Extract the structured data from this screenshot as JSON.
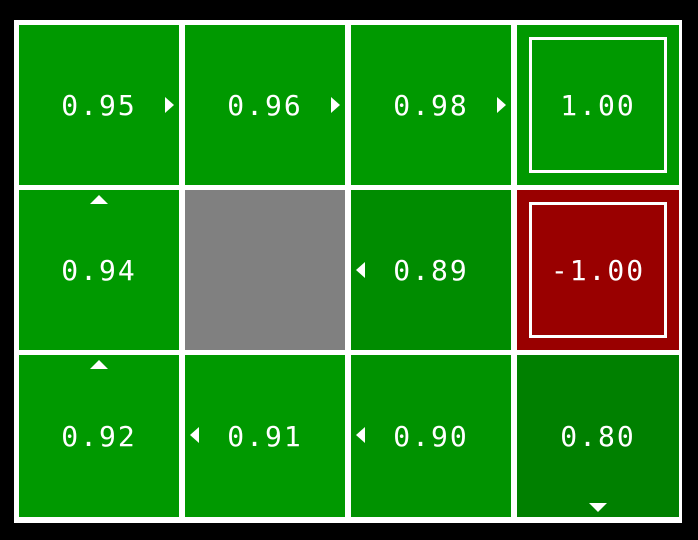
{
  "grid": {
    "rows": [
      [
        {
          "value": "0.95",
          "color": "#009900",
          "arrow": "right"
        },
        {
          "value": "0.96",
          "color": "#009900",
          "arrow": "right"
        },
        {
          "value": "0.98",
          "color": "#009900",
          "arrow": "right"
        },
        {
          "value": "1.00",
          "color": "#009900",
          "terminal": true
        }
      ],
      [
        {
          "value": "0.94",
          "color": "#009900",
          "arrow": "up"
        },
        {
          "value": "",
          "color": "#808080",
          "wall": true
        },
        {
          "value": "0.89",
          "color": "#008c00",
          "arrow": "left"
        },
        {
          "value": "-1.00",
          "color": "#990000",
          "terminal": true
        }
      ],
      [
        {
          "value": "0.92",
          "color": "#009900",
          "arrow": "up"
        },
        {
          "value": "0.91",
          "color": "#009900",
          "arrow": "left"
        },
        {
          "value": "0.90",
          "color": "#009200",
          "arrow": "left"
        },
        {
          "value": "0.80",
          "color": "#008000",
          "arrow": "down"
        }
      ]
    ]
  }
}
